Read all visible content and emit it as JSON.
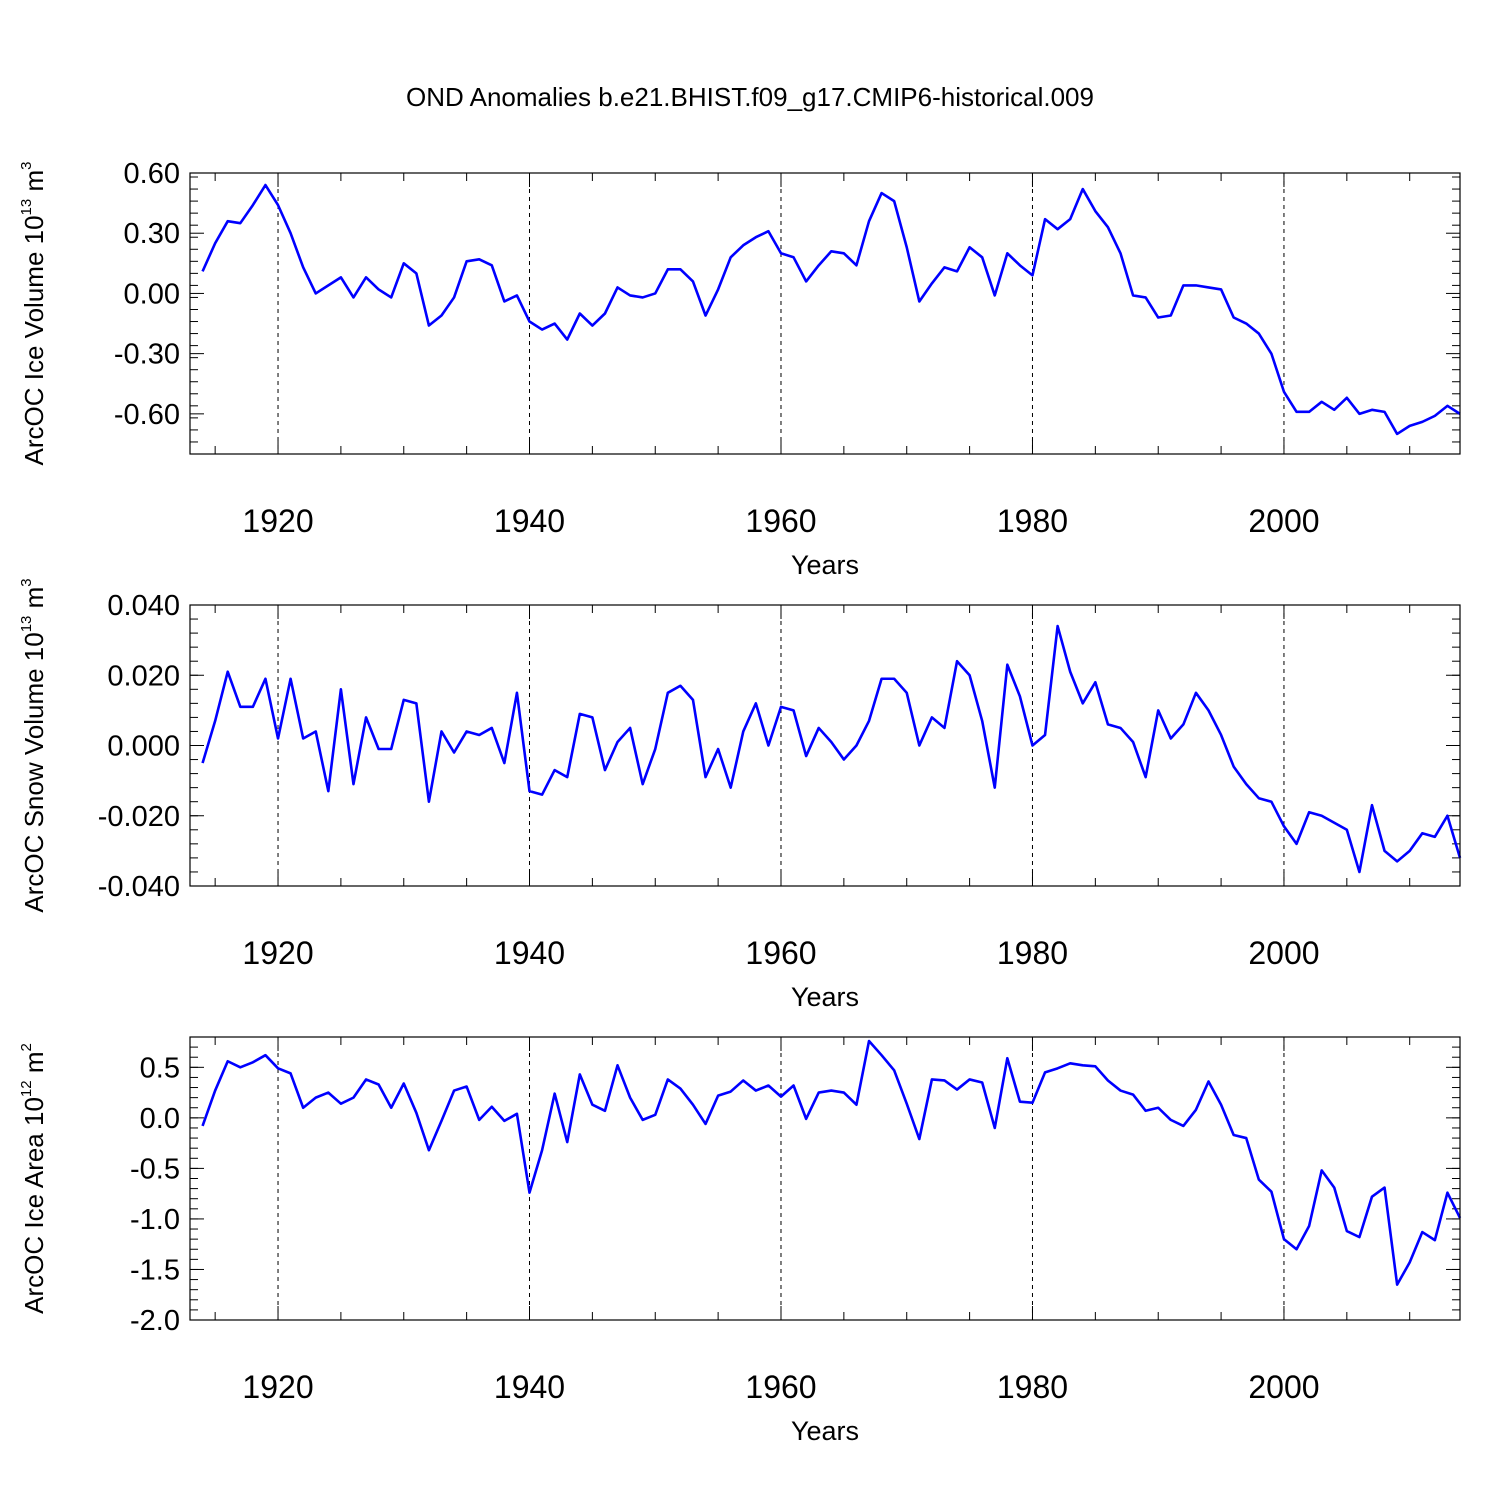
{
  "title": "OND Anomalies b.e21.BHIST.f09_g17.CMIP6-historical.009",
  "colors": {
    "series": "#0000ff",
    "axes": "#000000",
    "gridlines": "#000000"
  },
  "chart_data": [
    {
      "type": "line",
      "ylabel_main": "ArcOC Ice Volume 10",
      "ylabel_sup1": "13",
      "ylabel_unit": " m",
      "ylabel_sup2": "3",
      "xlabel": "Years",
      "xlim": [
        1913,
        2014
      ],
      "ylim": [
        -0.8,
        0.6
      ],
      "yticks": [
        -0.6,
        -0.3,
        0.0,
        0.3,
        0.6
      ],
      "ytick_labels": [
        "-0.60",
        "-0.30",
        "0.00",
        "0.30",
        "0.60"
      ],
      "xticks": [
        1920,
        1940,
        1960,
        1980,
        2000
      ],
      "xtick_labels": [
        "1920",
        "1940",
        "1960",
        "1980",
        "2000"
      ],
      "grid_x": "dashed at major x ticks",
      "series": [
        {
          "name": "ice_volume",
          "x_start": 1914,
          "values": [
            0.11,
            0.25,
            0.36,
            0.35,
            0.44,
            0.54,
            0.44,
            0.3,
            0.13,
            0.0,
            0.04,
            0.08,
            -0.02,
            0.08,
            0.02,
            -0.02,
            0.15,
            0.1,
            -0.16,
            -0.11,
            -0.02,
            0.16,
            0.17,
            0.14,
            -0.04,
            -0.01,
            -0.14,
            -0.18,
            -0.15,
            -0.23,
            -0.1,
            -0.16,
            -0.1,
            0.03,
            -0.01,
            -0.02,
            0.0,
            0.12,
            0.12,
            0.06,
            -0.11,
            0.02,
            0.18,
            0.24,
            0.28,
            0.31,
            0.2,
            0.18,
            0.06,
            0.14,
            0.21,
            0.2,
            0.14,
            0.36,
            0.5,
            0.46,
            0.23,
            -0.04,
            0.05,
            0.13,
            0.11,
            0.23,
            0.18,
            -0.01,
            0.2,
            0.14,
            0.09,
            0.37,
            0.32,
            0.37,
            0.52,
            0.41,
            0.33,
            0.2,
            -0.01,
            -0.02,
            -0.12,
            -0.11,
            0.04,
            0.04,
            0.03,
            0.02,
            -0.12,
            -0.15,
            -0.2,
            -0.3,
            -0.49,
            -0.59,
            -0.59,
            -0.54,
            -0.58,
            -0.52,
            -0.6,
            -0.58,
            -0.59,
            -0.7,
            -0.66,
            -0.64,
            -0.61,
            -0.56,
            -0.6
          ]
        }
      ]
    },
    {
      "type": "line",
      "ylabel_main": "ArcOC Snow Volume 10",
      "ylabel_sup1": "13",
      "ylabel_unit": " m",
      "ylabel_sup2": "3",
      "xlabel": "Years",
      "xlim": [
        1913,
        2014
      ],
      "ylim": [
        -0.04,
        0.04
      ],
      "yticks": [
        -0.04,
        -0.02,
        0.0,
        0.02,
        0.04
      ],
      "ytick_labels": [
        "-0.040",
        "-0.020",
        "0.000",
        "0.020",
        "0.040"
      ],
      "xticks": [
        1920,
        1940,
        1960,
        1980,
        2000
      ],
      "xtick_labels": [
        "1920",
        "1940",
        "1960",
        "1980",
        "2000"
      ],
      "grid_x": "dashed at major x ticks",
      "series": [
        {
          "name": "snow_volume",
          "x_start": 1914,
          "values": [
            -0.005,
            0.007,
            0.021,
            0.011,
            0.011,
            0.019,
            0.002,
            0.019,
            0.002,
            0.004,
            -0.013,
            0.016,
            -0.011,
            0.008,
            -0.001,
            -0.001,
            0.013,
            0.012,
            -0.016,
            0.004,
            -0.002,
            0.004,
            0.003,
            0.005,
            -0.005,
            0.015,
            -0.013,
            -0.014,
            -0.007,
            -0.009,
            0.009,
            0.008,
            -0.007,
            0.001,
            0.005,
            -0.011,
            -0.001,
            0.015,
            0.017,
            0.013,
            -0.009,
            -0.001,
            -0.012,
            0.004,
            0.012,
            0.0,
            0.011,
            0.01,
            -0.003,
            0.005,
            0.001,
            -0.004,
            0.0,
            0.007,
            0.019,
            0.019,
            0.015,
            0.0,
            0.008,
            0.005,
            0.024,
            0.02,
            0.007,
            -0.012,
            0.023,
            0.014,
            0.0,
            0.003,
            0.034,
            0.021,
            0.012,
            0.018,
            0.006,
            0.005,
            0.001,
            -0.009,
            0.01,
            0.002,
            0.006,
            0.015,
            0.01,
            0.003,
            -0.006,
            -0.011,
            -0.015,
            -0.016,
            -0.023,
            -0.028,
            -0.019,
            -0.02,
            -0.022,
            -0.024,
            -0.036,
            -0.017,
            -0.03,
            -0.033,
            -0.03,
            -0.025,
            -0.026,
            -0.02,
            -0.032
          ]
        }
      ]
    },
    {
      "type": "line",
      "ylabel_main": "ArcOC Ice Area 10",
      "ylabel_sup1": "12",
      "ylabel_unit": " m",
      "ylabel_sup2": "2",
      "xlabel": "Years",
      "xlim": [
        1913,
        2014
      ],
      "ylim": [
        -2.0,
        0.8
      ],
      "yticks": [
        -2.0,
        -1.5,
        -1.0,
        -0.5,
        0.0,
        0.5
      ],
      "ytick_labels": [
        "-2.0",
        "-1.5",
        "-1.0",
        "-0.5",
        "0.0",
        "0.5"
      ],
      "xticks": [
        1920,
        1940,
        1960,
        1980,
        2000
      ],
      "xtick_labels": [
        "1920",
        "1940",
        "1960",
        "1980",
        "2000"
      ],
      "grid_x": "dashed at major x ticks",
      "series": [
        {
          "name": "ice_area",
          "x_start": 1914,
          "values": [
            -0.08,
            0.27,
            0.56,
            0.5,
            0.55,
            0.62,
            0.49,
            0.44,
            0.1,
            0.2,
            0.25,
            0.14,
            0.2,
            0.38,
            0.33,
            0.1,
            0.34,
            0.05,
            -0.32,
            -0.03,
            0.27,
            0.31,
            -0.02,
            0.11,
            -0.03,
            0.04,
            -0.74,
            -0.32,
            0.24,
            -0.24,
            0.43,
            0.13,
            0.07,
            0.52,
            0.2,
            -0.02,
            0.03,
            0.38,
            0.29,
            0.13,
            -0.06,
            0.22,
            0.26,
            0.37,
            0.27,
            0.32,
            0.21,
            0.32,
            -0.01,
            0.25,
            0.27,
            0.25,
            0.13,
            0.76,
            0.62,
            0.47,
            0.14,
            -0.21,
            0.38,
            0.37,
            0.28,
            0.38,
            0.35,
            -0.1,
            0.59,
            0.16,
            0.15,
            0.45,
            0.49,
            0.54,
            0.52,
            0.51,
            0.37,
            0.27,
            0.23,
            0.07,
            0.1,
            -0.02,
            -0.08,
            0.08,
            0.36,
            0.13,
            -0.17,
            -0.2,
            -0.61,
            -0.73,
            -1.2,
            -1.3,
            -1.07,
            -0.52,
            -0.69,
            -1.12,
            -1.18,
            -0.78,
            -0.69,
            -1.65,
            -1.43,
            -1.13,
            -1.21,
            -0.74,
            -0.99
          ]
        }
      ]
    }
  ]
}
